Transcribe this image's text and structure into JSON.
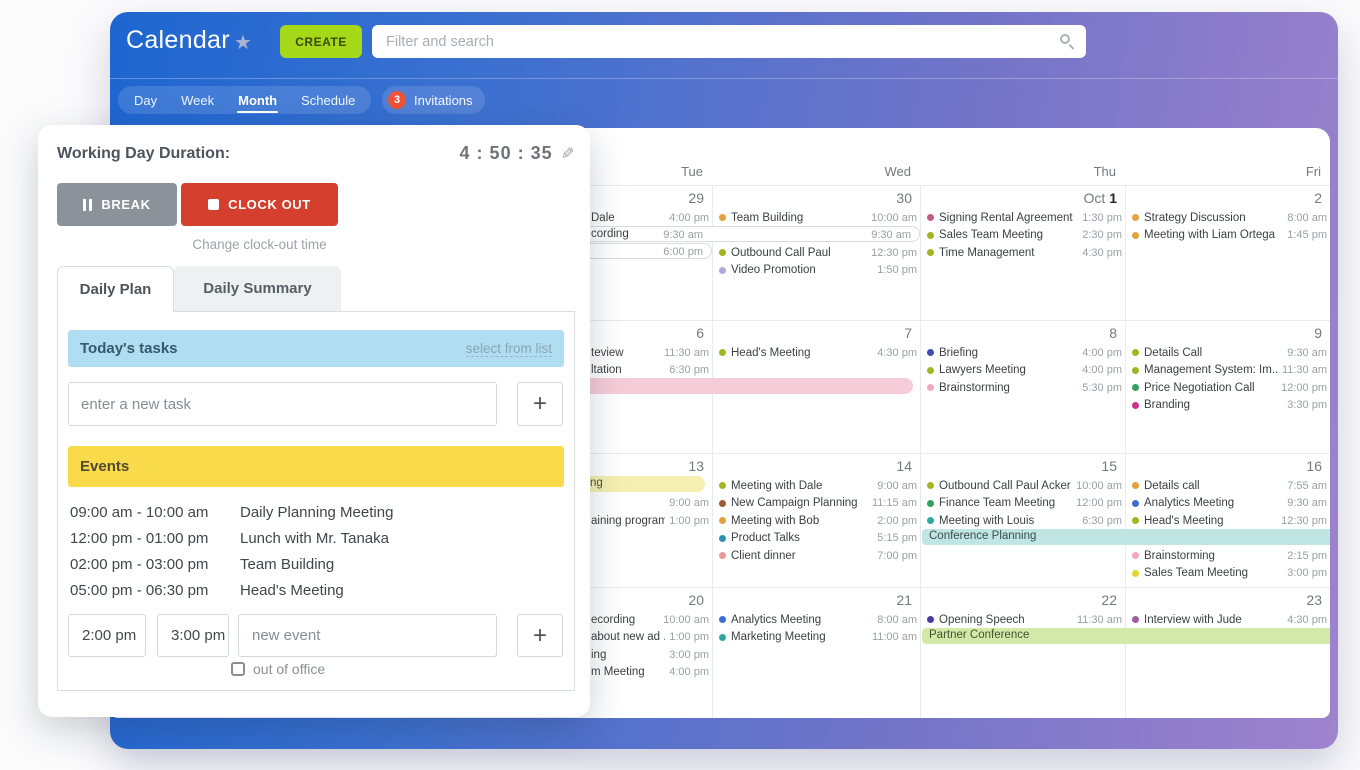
{
  "header": {
    "title": "Calendar",
    "create": "CREATE",
    "search_placeholder": "Filter and search"
  },
  "nav": {
    "tabs": [
      {
        "label": "Day",
        "active": false
      },
      {
        "label": "Week",
        "active": false
      },
      {
        "label": "Month",
        "active": true
      },
      {
        "label": "Schedule",
        "active": false
      }
    ],
    "invitations_count": "3",
    "invitations_label": "Invitations"
  },
  "widget": {
    "title": "Working Day Duration:",
    "timer": "4 : 50 : 35",
    "break": "BREAK",
    "clock_out": "CLOCK OUT",
    "change_link": "Change clock-out time",
    "tab_daily_plan": "Daily Plan",
    "tab_daily_summary": "Daily Summary",
    "tasks_title": "Today's tasks",
    "select_from_list": "select from list",
    "task_placeholder": "enter a new task",
    "add": "+",
    "events_title": "Events",
    "events": [
      {
        "start": "09:00 am",
        "end": "10:00 am",
        "name": "Daily Planning Meeting"
      },
      {
        "start": "12:00 pm",
        "end": "01:00 pm",
        "name": "Lunch with Mr. Tanaka"
      },
      {
        "start": "02:00 pm",
        "end": "03:00 pm",
        "name": "Team Building"
      },
      {
        "start": "05:00 pm",
        "end": "06:30 pm",
        "name": "Head's Meeting"
      }
    ],
    "new_event": {
      "start": "2:00 pm",
      "end": "3:00 pm",
      "name_placeholder": "new event",
      "add": "+",
      "checkbox": "out of office"
    }
  },
  "calendar": {
    "day_headers": [
      "Tue",
      "Wed",
      "Thu",
      "Fri"
    ],
    "weeks": [
      {
        "days": [
          {
            "date": "29",
            "events": [
              {
                "line": 0,
                "name": "Dale",
                "time": "4:00 pm",
                "frag": true
              }
            ]
          },
          {
            "date": "30",
            "events": [
              {
                "line": 0,
                "name": "Team Building",
                "time": "10:00 am",
                "dot": "#e2a33c"
              },
              {
                "line": 2,
                "name": "Outbound Call Paul",
                "time": "12:30 pm",
                "dot": "#a3b422"
              },
              {
                "line": 3,
                "name": "Video Promotion",
                "time": "1:50 pm",
                "dot": "#a9abde"
              }
            ]
          },
          {
            "date": "1",
            "date_prefix": "Oct",
            "events": [
              {
                "line": 0,
                "name": "Signing Rental Agreement",
                "time": "1:30 pm",
                "dot": "#c05c80"
              },
              {
                "line": 1,
                "name": "Sales Team Meeting",
                "time": "2:30 pm",
                "dot": "#a3b422"
              },
              {
                "line": 2,
                "name": "Time Management",
                "time": "4:30 pm",
                "dot": "#a3b422"
              }
            ]
          },
          {
            "date": "2",
            "events": [
              {
                "line": 0,
                "name": "Strategy Discussion",
                "time": "8:00 am",
                "dot": "#e2a33c"
              },
              {
                "line": 1,
                "name": "Meeting with Liam Ortega",
                "time": "1:45 pm",
                "dot": "#e2a33c"
              }
            ]
          }
        ],
        "bars": [
          {
            "line": 1,
            "style": "outline",
            "start": -1,
            "end": 1,
            "text": "cording",
            "text_indent": 140,
            "times": [
              {
                "text": "9:30 am",
                "col": 0
              },
              {
                "text": "9:30 am",
                "col": 1
              }
            ]
          },
          {
            "line": 2,
            "style": "outline",
            "start": -1,
            "end": 0,
            "times": [
              {
                "text": "6:00 pm",
                "col": 0
              }
            ]
          }
        ]
      },
      {
        "days": [
          {
            "date": "6",
            "events": [
              {
                "line": 0,
                "name": "teview",
                "time": "11:30 am",
                "frag": true
              },
              {
                "line": 1,
                "name": "ltation",
                "time": "6:30 pm",
                "frag": true
              }
            ]
          },
          {
            "date": "7",
            "events": [
              {
                "line": 0,
                "name": "Head's Meeting",
                "time": "4:30 pm",
                "dot": "#a3b422"
              }
            ]
          },
          {
            "date": "8",
            "events": [
              {
                "line": 0,
                "name": "Briefing",
                "time": "4:00 pm",
                "dot": "#3c4cb4"
              },
              {
                "line": 1,
                "name": "Lawyers Meeting",
                "time": "4:00 pm",
                "dot": "#a3b422"
              },
              {
                "line": 2,
                "name": "Brainstorming",
                "time": "5:30 pm",
                "dot": "#f2a8bc"
              }
            ]
          },
          {
            "date": "9",
            "events": [
              {
                "line": 0,
                "name": "Details Call",
                "time": "9:30 am",
                "dot": "#a3b422"
              },
              {
                "line": 1,
                "name": "Management System: Im..",
                "time": "11:30 am",
                "dot": "#a3b422"
              },
              {
                "line": 2,
                "name": "Price Negotiation Call",
                "time": "12:00 pm",
                "dot": "#33a060"
              },
              {
                "line": 3,
                "name": "Branding",
                "time": "3:30 pm",
                "dot": "#cf2f8a"
              }
            ]
          }
        ],
        "bars": [
          {
            "line": 2,
            "style": "fill",
            "color": "#f6ccd8",
            "start": -1,
            "end": 1
          }
        ]
      },
      {
        "days": [
          {
            "date": "13",
            "events": [
              {
                "line": 1,
                "time": "9:00 am",
                "time_only": true
              },
              {
                "line": 2,
                "name": "aining program",
                "time": "1:00 pm",
                "frag": true
              }
            ]
          },
          {
            "date": "14",
            "events": [
              {
                "line": 0,
                "name": "Meeting with Dale",
                "time": "9:00 am",
                "dot": "#a3b422"
              },
              {
                "line": 1,
                "name": "New Campaign Planning",
                "time": "11:15 am",
                "dot": "#9c5a30"
              },
              {
                "line": 2,
                "name": "Meeting with Bob",
                "time": "2:00 pm",
                "dot": "#e2a33c"
              },
              {
                "line": 3,
                "name": "Product Talks",
                "time": "5:15 pm",
                "dot": "#2f8fb4"
              },
              {
                "line": 4,
                "name": "Client dinner",
                "time": "7:00 pm",
                "dot": "#e89898"
              }
            ]
          },
          {
            "date": "15",
            "events": [
              {
                "line": 0,
                "name": "Outbound Call Paul Acker",
                "time": "10:00 am",
                "dot": "#a3b422"
              },
              {
                "line": 1,
                "name": "Finance Team Meeting",
                "time": "12:00 pm",
                "dot": "#33a060"
              },
              {
                "line": 2,
                "name": "Meeting with Louis",
                "time": "6:30 pm",
                "dot": "#2fa8a0"
              }
            ]
          },
          {
            "date": "16",
            "events": [
              {
                "line": 0,
                "name": "Details call",
                "time": "7:55 am",
                "dot": "#e2a33c"
              },
              {
                "line": 1,
                "name": "Analytics Meeting",
                "time": "9:30 am",
                "dot": "#3c6cd4"
              },
              {
                "line": 2,
                "name": "Head's Meeting",
                "time": "12:30 pm",
                "dot": "#a3b422"
              },
              {
                "line": 4,
                "name": "Brainstorming",
                "time": "2:15 pm",
                "dot": "#f2a8bc"
              },
              {
                "line": 5,
                "name": "Sales Team Meeting",
                "time": "3:00 pm",
                "dot": "#e6d42e"
              }
            ]
          }
        ],
        "bars": [
          {
            "line": 0,
            "style": "fill",
            "color": "#f5f0b2",
            "start": -1,
            "end": 0,
            "text": "ng",
            "text_indent": 140,
            "text_color": "#56523b"
          },
          {
            "line": 3,
            "style": "fill",
            "color": "#bfe6e4",
            "start": 2,
            "end": 3,
            "text": "Conference Planning",
            "text_indent": 7,
            "text_color": "#3d4b51"
          }
        ]
      },
      {
        "days": [
          {
            "date": "20",
            "events": [
              {
                "line": 0,
                "name": "ecording",
                "time": "10:00 am",
                "frag": true
              },
              {
                "line": 1,
                "name": "about new ad ..",
                "time": "1:00 pm",
                "frag": true
              },
              {
                "line": 2,
                "name": "ing",
                "time": "3:00 pm",
                "frag": true
              },
              {
                "line": 3,
                "name": "m Meeting",
                "time": "4:00 pm",
                "frag": true
              }
            ]
          },
          {
            "date": "21",
            "events": [
              {
                "line": 0,
                "name": "Analytics Meeting",
                "time": "8:00 am",
                "dot": "#3c6cd4"
              },
              {
                "line": 1,
                "name": "Marketing Meeting",
                "time": "11:00 am",
                "dot": "#2fa8a0"
              }
            ]
          },
          {
            "date": "22",
            "events": [
              {
                "line": 0,
                "name": "Opening Speech",
                "time": "11:30 am",
                "dot": "#4c3ca0"
              }
            ]
          },
          {
            "date": "23",
            "events": [
              {
                "line": 0,
                "name": "Interview with Jude",
                "time": "4:30 pm",
                "dot": "#a05ca0"
              }
            ]
          }
        ],
        "bars": [
          {
            "line": 1,
            "style": "fill",
            "color": "#d3e9aa",
            "start": 2,
            "end": 3,
            "text": "Partner Conference",
            "text_indent": 7,
            "text_color": "#45512f"
          }
        ]
      }
    ]
  },
  "colors": {
    "create_green": "#a5d816",
    "create_text": "#394a0a",
    "clock_out_red": "#d5402e",
    "break_gray": "#8b9299",
    "invitations_red": "#ee5237",
    "tasks_blue": "#b0ddf1",
    "events_yellow": "#f8da4b",
    "header_gradient_from": "#1e66d0",
    "header_gradient_to": "#9f83cd"
  }
}
